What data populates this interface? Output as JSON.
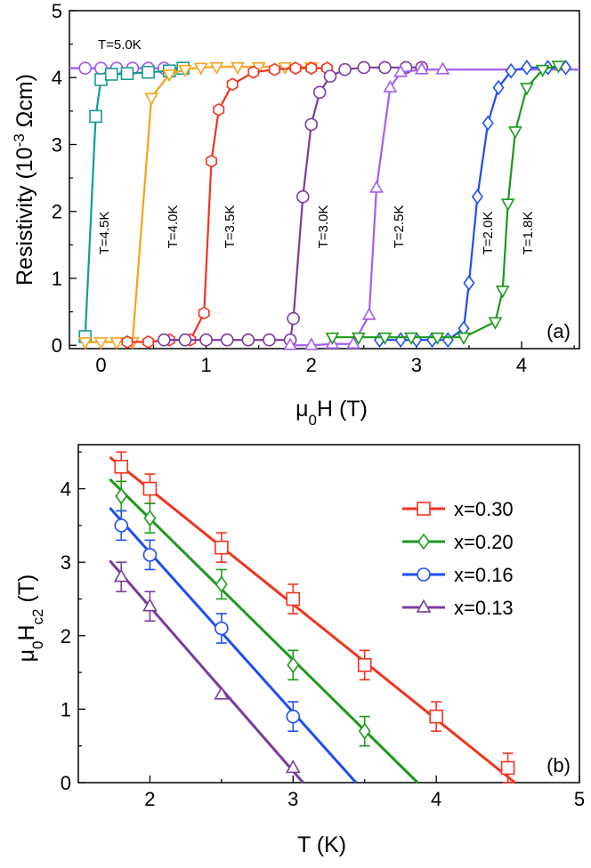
{
  "chart_data": [
    {
      "id": "a",
      "type": "line",
      "panel_label": "(a)",
      "xlabel_main": "μ",
      "xlabel_sub": "0",
      "xlabel_rest": "H (T)",
      "ylabel_pre": "Resistivity (10",
      "ylabel_sup": "-3",
      "ylabel_post": " Ωcm)",
      "xlim": [
        -0.3,
        4.55
      ],
      "ylim": [
        -0.05,
        5
      ],
      "xticks": [
        "0",
        "1",
        "2",
        "3",
        "4"
      ],
      "xtick_values": [
        0,
        1,
        2,
        3,
        4
      ],
      "yticks": [
        "0",
        "1",
        "2",
        "3",
        "4",
        "5"
      ],
      "ytick_values": [
        0,
        1,
        2,
        3,
        4,
        5
      ],
      "series": [
        {
          "name": "T=5.0K",
          "color": "#9b59f5",
          "marker": "circle",
          "x": [
            -0.15,
            0.0,
            0.15,
            0.3,
            0.45,
            0.6
          ],
          "y": [
            4.14,
            4.14,
            4.14,
            4.14,
            4.14,
            4.14
          ],
          "line_x": [
            -0.3,
            0.8
          ]
        },
        {
          "name": "T=4.5K",
          "color": "#169b93",
          "marker": "square",
          "x": [
            -0.15,
            -0.05,
            0.0,
            0.1,
            0.25,
            0.45,
            0.65,
            0.78
          ],
          "y": [
            0.13,
            3.42,
            3.97,
            4.05,
            4.06,
            4.08,
            4.1,
            4.14
          ]
        },
        {
          "name": "T=4.0K",
          "color": "#f7a21a",
          "marker": "triangle-down",
          "x": [
            -0.15,
            0.0,
            0.15,
            0.3,
            0.48,
            0.65,
            0.8,
            0.95,
            1.1,
            1.3,
            1.5,
            1.75,
            2.0
          ],
          "y": [
            0.05,
            0.05,
            0.05,
            0.05,
            3.7,
            4.05,
            4.12,
            4.15,
            4.16,
            4.16,
            4.16,
            4.16,
            4.16
          ]
        },
        {
          "name": "T=3.5K",
          "color": "#f0341e",
          "marker": "hexagon",
          "x": [
            0.25,
            0.45,
            0.65,
            0.85,
            0.98,
            1.05,
            1.12,
            1.25,
            1.45,
            1.65,
            1.85,
            2.0,
            2.15
          ],
          "y": [
            0.05,
            0.05,
            0.08,
            0.08,
            0.48,
            2.75,
            3.52,
            3.9,
            4.08,
            4.12,
            4.14,
            4.14,
            4.14
          ]
        },
        {
          "name": "T=3.0K",
          "color": "#7b3b9d",
          "marker": "circle",
          "x": [
            0.6,
            0.8,
            1.0,
            1.2,
            1.4,
            1.6,
            1.8,
            1.83,
            1.92,
            2.0,
            2.08,
            2.18,
            2.32,
            2.5,
            2.7,
            2.9,
            3.05
          ],
          "y": [
            0.08,
            0.08,
            0.08,
            0.08,
            0.08,
            0.08,
            0.08,
            0.4,
            2.22,
            3.3,
            3.78,
            4.02,
            4.12,
            4.15,
            4.15,
            4.15,
            4.15
          ]
        },
        {
          "name": "T=2.5K",
          "color": "#a55df0",
          "marker": "triangle-up",
          "x": [
            1.8,
            2.0,
            2.2,
            2.4,
            2.55,
            2.62,
            2.75,
            2.85,
            3.05,
            3.25
          ],
          "y": [
            0.0,
            0.0,
            0.02,
            0.02,
            0.45,
            2.35,
            3.85,
            4.08,
            4.12,
            4.12
          ],
          "line_x": [
            1.8,
            4.55
          ]
        },
        {
          "name": "T=2.0K",
          "color": "#1e4ef0",
          "marker": "diamond",
          "x": [
            2.65,
            2.85,
            3.0,
            3.15,
            3.3,
            3.45,
            3.5,
            3.58,
            3.68,
            3.78,
            3.9,
            4.05,
            4.25,
            4.42
          ],
          "y": [
            0.08,
            0.08,
            0.08,
            0.08,
            0.08,
            0.25,
            0.93,
            2.22,
            3.32,
            3.85,
            4.1,
            4.15,
            4.15,
            4.15
          ]
        },
        {
          "name": "T=1.8K",
          "color": "#1c9a1a",
          "marker": "triangle-down",
          "x": [
            2.2,
            2.45,
            2.7,
            2.95,
            3.2,
            3.45,
            3.75,
            3.82,
            3.87,
            3.94,
            4.05,
            4.2,
            4.35
          ],
          "y": [
            0.12,
            0.12,
            0.12,
            0.12,
            0.12,
            0.12,
            0.35,
            0.82,
            2.12,
            3.2,
            3.85,
            4.12,
            4.18
          ]
        }
      ]
    },
    {
      "id": "b",
      "type": "scatter",
      "panel_label": "(b)",
      "xlabel": "T (K)",
      "ylabel_main": "μ",
      "ylabel_sub1": "0",
      "ylabel_mid": "H",
      "ylabel_sub2": "c2",
      "ylabel_rest": " (T)",
      "xlim": [
        1.5,
        5
      ],
      "ylim": [
        0,
        4.6
      ],
      "xticks": [
        "2",
        "3",
        "4",
        "5"
      ],
      "xtick_values": [
        2,
        3,
        4,
        5
      ],
      "yticks": [
        "0",
        "1",
        "2",
        "3",
        "4"
      ],
      "ytick_values": [
        0,
        1,
        2,
        3,
        4
      ],
      "legend_position": "top-right",
      "series": [
        {
          "name": "x=0.30",
          "color": "#f0341e",
          "marker": "square",
          "x": [
            1.8,
            2.0,
            2.5,
            3.0,
            3.5,
            4.0,
            4.5
          ],
          "y": [
            4.3,
            4.0,
            3.2,
            2.5,
            1.6,
            0.9,
            0.2
          ],
          "err": [
            0.2,
            0.2,
            0.2,
            0.2,
            0.2,
            0.2,
            0.2
          ],
          "fit_x": [
            1.72,
            4.55
          ],
          "fit_y": [
            4.43,
            0.0
          ]
        },
        {
          "name": "x=0.20",
          "color": "#1c9a1a",
          "marker": "diamond",
          "x": [
            1.8,
            2.0,
            2.5,
            3.0,
            3.5
          ],
          "y": [
            3.9,
            3.6,
            2.7,
            1.6,
            0.7
          ],
          "err": [
            0.2,
            0.2,
            0.2,
            0.2,
            0.2
          ],
          "fit_x": [
            1.72,
            3.87
          ],
          "fit_y": [
            4.13,
            0.0
          ]
        },
        {
          "name": "x=0.16",
          "color": "#1e4ef0",
          "marker": "circle",
          "x": [
            1.8,
            2.0,
            2.5,
            3.0
          ],
          "y": [
            3.5,
            3.1,
            2.1,
            0.9
          ],
          "err": [
            0.2,
            0.2,
            0.2,
            0.2
          ],
          "fit_x": [
            1.72,
            3.44
          ],
          "fit_y": [
            3.74,
            0.0
          ]
        },
        {
          "name": "x=0.13",
          "color": "#7b3b9d",
          "marker": "triangle-up",
          "x": [
            1.8,
            2.0,
            2.5,
            3.0
          ],
          "y": [
            2.8,
            2.4,
            1.2,
            0.2
          ],
          "err": [
            0.2,
            0.2,
            0.0,
            0.0
          ],
          "fit_x": [
            1.72,
            3.07
          ],
          "fit_y": [
            3.02,
            0.0
          ]
        }
      ]
    }
  ]
}
